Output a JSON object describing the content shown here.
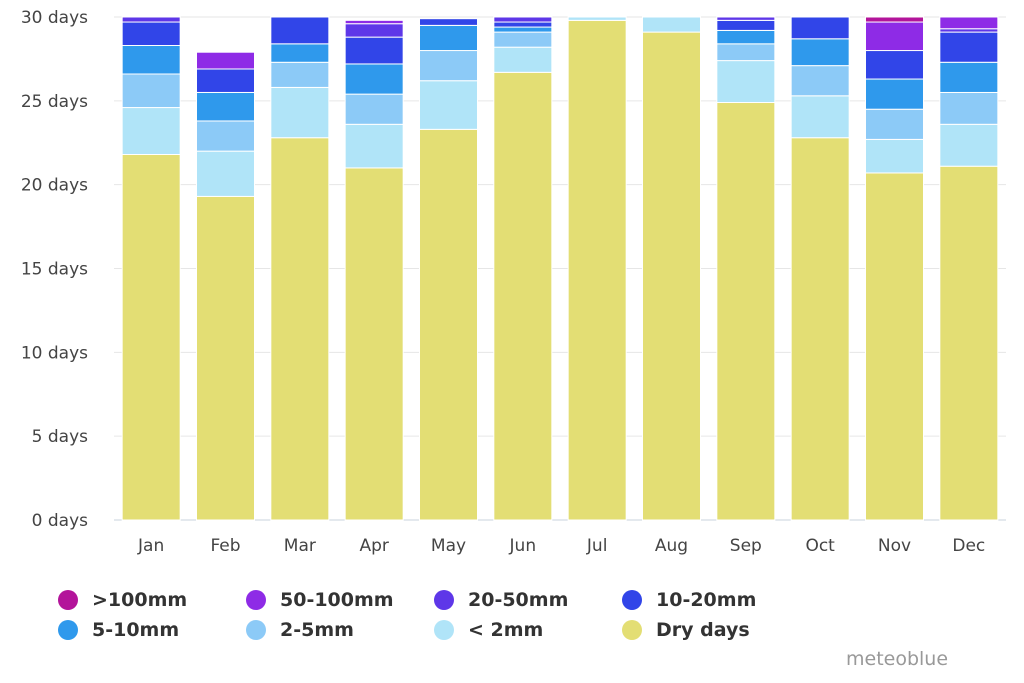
{
  "chart_data": {
    "type": "bar",
    "stacked": true,
    "categories": [
      "Jan",
      "Feb",
      "Mar",
      "Apr",
      "May",
      "Jun",
      "Jul",
      "Aug",
      "Sep",
      "Oct",
      "Nov",
      "Dec"
    ],
    "y_ticks": [
      "0 days",
      "5 days",
      "10 days",
      "15 days",
      "20 days",
      "25 days",
      "30 days"
    ],
    "ylim": [
      0,
      30
    ],
    "grid": true,
    "legend_position": "bottom",
    "series": [
      {
        "name": "Dry days",
        "color": "#e3de74",
        "values": [
          21.8,
          19.3,
          22.8,
          21.0,
          23.3,
          26.7,
          29.8,
          29.1,
          24.9,
          22.8,
          20.7,
          21.1
        ]
      },
      {
        "name": "< 2mm",
        "color": "#b0e4f8",
        "values": [
          2.8,
          2.7,
          3.0,
          2.6,
          2.9,
          1.5,
          0.2,
          0.9,
          2.5,
          2.5,
          2.0,
          2.5
        ]
      },
      {
        "name": "2-5mm",
        "color": "#8ccaf7",
        "values": [
          2.0,
          1.8,
          1.5,
          1.8,
          1.8,
          0.9,
          0,
          0,
          1.0,
          1.8,
          1.8,
          1.9
        ]
      },
      {
        "name": "5-10mm",
        "color": "#2f99ec",
        "values": [
          1.7,
          1.7,
          1.1,
          1.8,
          1.5,
          0.3,
          0,
          0,
          0.8,
          1.6,
          1.8,
          1.8
        ]
      },
      {
        "name": "10-20mm",
        "color": "#3145e8",
        "values": [
          1.4,
          1.4,
          1.6,
          1.6,
          0.4,
          0.3,
          0,
          0,
          0.6,
          1.3,
          1.7,
          1.8
        ]
      },
      {
        "name": "20-50mm",
        "color": "#5e37e8",
        "values": [
          0.3,
          0,
          0,
          0.8,
          0,
          0.3,
          0,
          0,
          0.2,
          0,
          0,
          0.2
        ]
      },
      {
        "name": "50-100mm",
        "color": "#8e2be6",
        "values": [
          0,
          1.0,
          0,
          0.2,
          0,
          0,
          0,
          0,
          0,
          0,
          1.7,
          0.7
        ]
      },
      {
        "name": ">100mm",
        "color": "#b3149a",
        "values": [
          0,
          0,
          0,
          0,
          0,
          0,
          0,
          0,
          0,
          0,
          0.3,
          0
        ]
      }
    ]
  },
  "legend": [
    {
      "label": ">100mm",
      "color": "#b3149a"
    },
    {
      "label": "50-100mm",
      "color": "#8e2be6"
    },
    {
      "label": "20-50mm",
      "color": "#5e37e8"
    },
    {
      "label": "10-20mm",
      "color": "#3145e8"
    },
    {
      "label": "5-10mm",
      "color": "#2f99ec"
    },
    {
      "label": "2-5mm",
      "color": "#8ccaf7"
    },
    {
      "label": "< 2mm",
      "color": "#b0e4f8"
    },
    {
      "label": "Dry days",
      "color": "#e3de74"
    }
  ],
  "credit": "meteoblue"
}
